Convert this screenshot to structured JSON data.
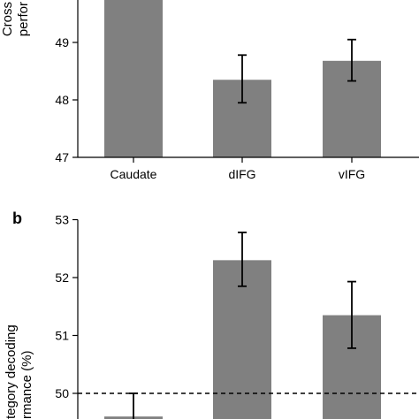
{
  "chart_data": [
    {
      "panel": "",
      "type": "bar",
      "ylabel_fragment_1": "Cross",
      "ylabel_fragment_2": "perfor",
      "categories": [
        "Caudate",
        "dIFG",
        "vIFG"
      ],
      "values": [
        49.8,
        48.35,
        48.68
      ],
      "errors_upper": [
        null,
        48.78,
        49.05
      ],
      "errors_lower": [
        null,
        47.95,
        48.33
      ],
      "y_ticks": [
        47,
        48,
        49
      ],
      "ylim": [
        47,
        49.8
      ],
      "colors": {
        "bar": "#808080",
        "error": "#000000"
      },
      "grid": false
    },
    {
      "panel": "b",
      "type": "bar",
      "ylabel_fragment_1": "tegory decoding",
      "ylabel_fragment_2": "rmance (%)",
      "categories": [
        "",
        "",
        ""
      ],
      "values": [
        49.6,
        52.3,
        51.35
      ],
      "errors_upper": [
        50.0,
        52.78,
        51.93
      ],
      "errors_lower": [
        49.3,
        51.85,
        50.78
      ],
      "y_ticks": [
        50,
        51,
        52,
        53
      ],
      "ylim": [
        49.3,
        53
      ],
      "reference_line": 50,
      "colors": {
        "bar": "#808080",
        "error": "#000000",
        "reference": "#000000"
      },
      "grid": false
    }
  ]
}
